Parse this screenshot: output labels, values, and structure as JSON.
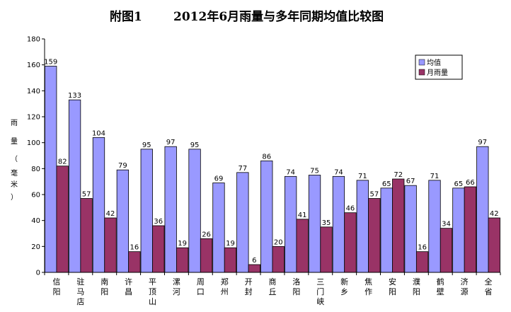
{
  "chart_data": {
    "type": "bar",
    "title_prefix": "附图1",
    "title": "2012年6月雨量与多年同期均值比较图",
    "ylabel": "雨量（毫米）",
    "xlabel": "",
    "ylim": [
      0,
      180
    ],
    "yticks": [
      0,
      20,
      40,
      60,
      80,
      100,
      120,
      140,
      160,
      180
    ],
    "grid": false,
    "legend_position": "top-right",
    "categories": [
      "信阳",
      "驻马店",
      "南阳",
      "许昌",
      "平顶山",
      "漯河",
      "周口",
      "郑州",
      "开封",
      "商丘",
      "洛阳",
      "三门峡",
      "新乡",
      "焦作",
      "安阳",
      "濮阳",
      "鹤壁",
      "济源",
      "全省"
    ],
    "series": [
      {
        "name": "均值",
        "color": "#9999ff",
        "values": [
          159,
          133,
          104,
          79,
          95,
          97,
          95,
          69,
          77,
          86,
          74,
          75,
          74,
          71,
          65,
          67,
          71,
          65,
          97
        ]
      },
      {
        "name": "月雨量",
        "color": "#993366",
        "values": [
          82,
          57,
          42,
          16,
          36,
          19,
          26,
          19,
          6,
          20,
          41,
          35,
          46,
          57,
          72,
          16,
          34,
          66,
          42
        ]
      }
    ]
  }
}
